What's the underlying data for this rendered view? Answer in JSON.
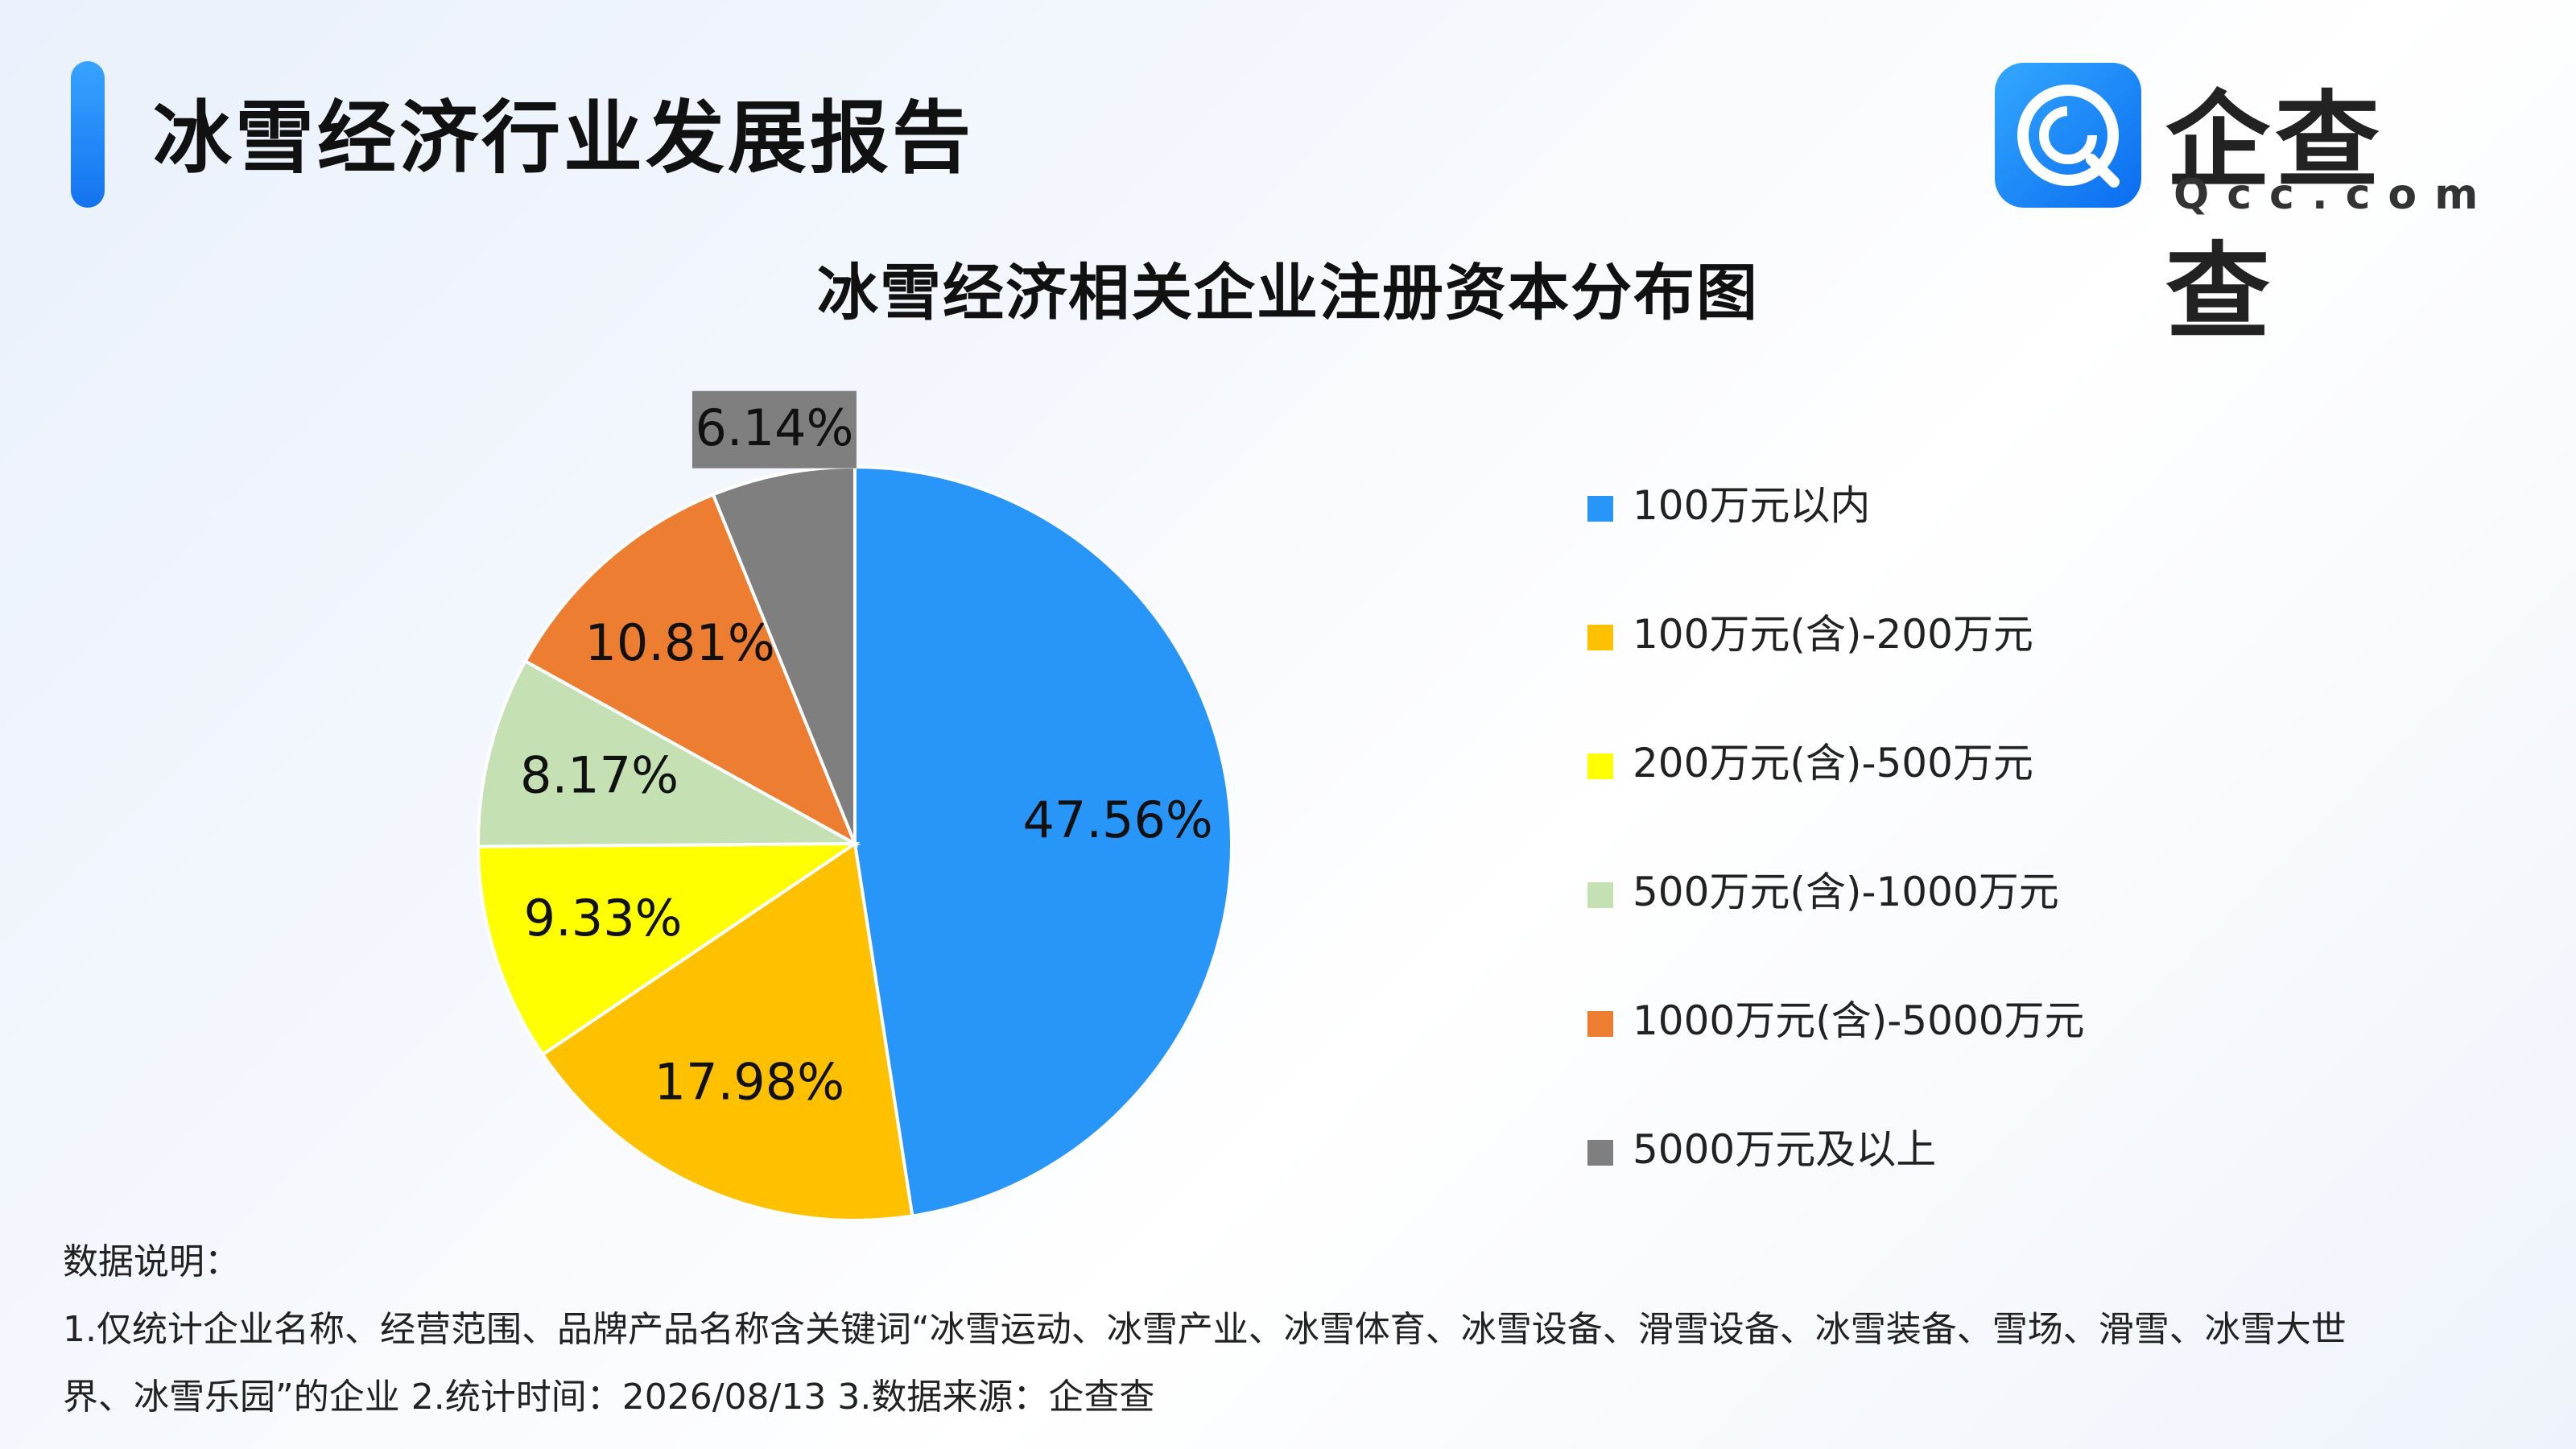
{
  "header": {
    "title": "冰雪经济行业发展报告",
    "logo_text": "企查查",
    "logo_domain": "Qcc.com"
  },
  "chart_data": {
    "type": "pie",
    "title": "冰雪经济相关企业注册资本分布图",
    "categories": [
      "100万元以内",
      "100万元(含)-200万元",
      "200万元(含)-500万元",
      "500万元(含)-1000万元",
      "1000万元(含)-5000万元",
      "5000万元及以上"
    ],
    "values": [
      47.56,
      17.98,
      9.33,
      8.17,
      10.81,
      6.14
    ],
    "labels": [
      "47.56%",
      "17.98%",
      "9.33%",
      "8.17%",
      "10.81%",
      "6.14%"
    ],
    "colors": [
      "#2896f8",
      "#ffc000",
      "#ffff00",
      "#c5e0b3",
      "#ed7d31",
      "#7f7f7f"
    ],
    "label_colors": [
      "#111111",
      "#111111",
      "#111111",
      "#111111",
      "#111111",
      "#111111"
    ],
    "start_angle_deg": 0,
    "direction": "clockwise",
    "legend_position": "right"
  },
  "notes": {
    "heading": "数据说明：",
    "line1": "1.仅统计企业名称、经营范围、品牌产品名称含关键词“冰雪运动、冰雪产业、冰雪体育、冰雪设备、滑雪设备、冰雪装备、雪场、滑雪、冰雪大世",
    "line2": "界、冰雪乐园”的企业    2.统计时间：2026/08/13    3.数据来源：企查查"
  }
}
